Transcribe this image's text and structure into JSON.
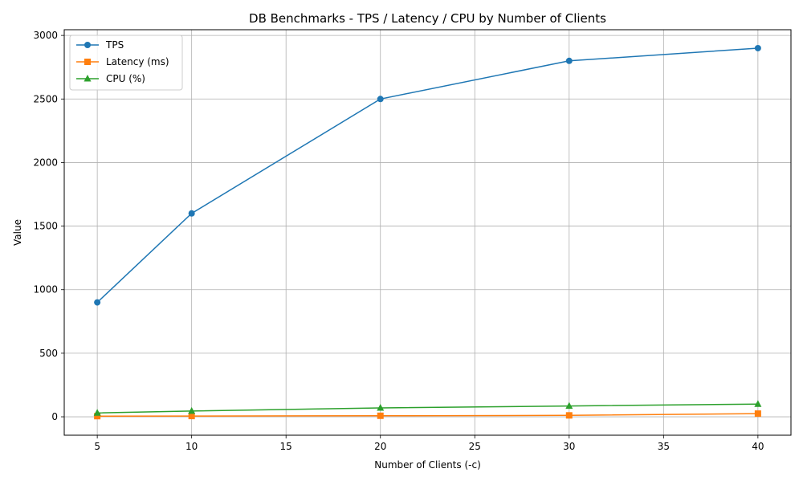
{
  "chart_data": {
    "type": "line",
    "title": "DB Benchmarks - TPS / Latency / CPU by Number of Clients",
    "xlabel": "Number of Clients (-c)",
    "ylabel": "Value",
    "x": [
      5,
      10,
      20,
      30,
      40
    ],
    "xlim": [
      3.25,
      41.75
    ],
    "ylim": [
      -145,
      3045
    ],
    "x_ticks": [
      5,
      10,
      15,
      20,
      25,
      30,
      35,
      40
    ],
    "y_ticks": [
      0,
      500,
      1000,
      1500,
      2000,
      2500,
      3000
    ],
    "grid": true,
    "legend_position": "top-left",
    "series": [
      {
        "name": "TPS",
        "values": [
          900,
          1600,
          2500,
          2800,
          2900
        ],
        "color": "#1f77b4",
        "marker": "circle"
      },
      {
        "name": "Latency (ms)",
        "values": [
          5,
          6,
          8,
          11,
          25
        ],
        "color": "#ff7f0e",
        "marker": "square"
      },
      {
        "name": "CPU (%)",
        "values": [
          30,
          45,
          70,
          85,
          100
        ],
        "color": "#2ca02c",
        "marker": "triangle"
      }
    ]
  }
}
